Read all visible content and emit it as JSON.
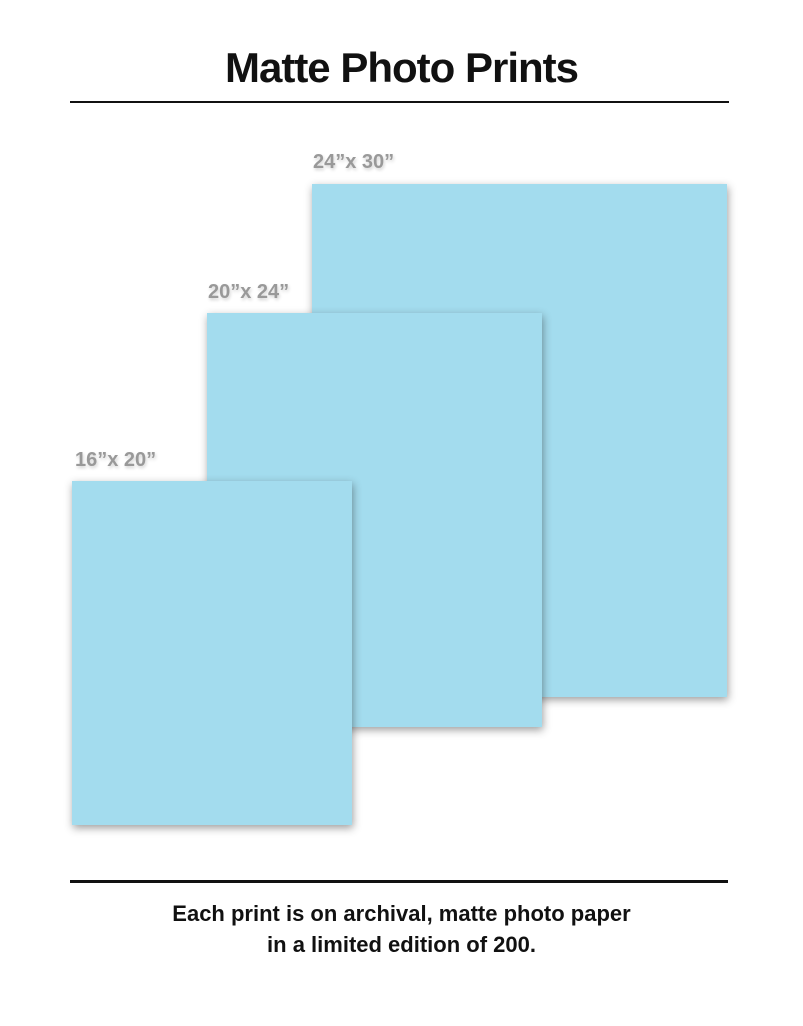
{
  "header": {
    "title": "Matte Photo Prints"
  },
  "prints": [
    {
      "label": "24”x 30”",
      "width_inches": 24,
      "height_inches": 30
    },
    {
      "label": "20”x 24”",
      "width_inches": 20,
      "height_inches": 24
    },
    {
      "label": "16”x 20”",
      "width_inches": 16,
      "height_inches": 20
    }
  ],
  "footer": {
    "line1": "Each print is on archival, matte photo paper",
    "line2": "in a limited edition of 200."
  },
  "colors": {
    "sheet_fill": "#A3DCEE",
    "label_gray": "#999999",
    "text_black": "#111111",
    "background": "#FFFFFF"
  }
}
